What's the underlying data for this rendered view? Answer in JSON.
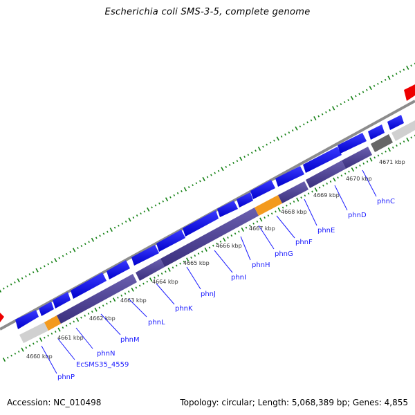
{
  "title": "Escherichia coli SMS-3-5, complete genome",
  "footer": {
    "accession": "Accession: NC_010498",
    "summary": "Topology: circular; Length: 5,068,389 bp; Genes: 4,855"
  },
  "kbp_labels": [
    "4660 kbp",
    "4661 kbp",
    "4662 kbp",
    "4663 kbp",
    "4664 kbp",
    "4665 kbp",
    "4666 kbp",
    "4667 kbp",
    "4668 kbp",
    "4669 kbp",
    "4670 kbp",
    "4671 kbp"
  ],
  "gene_labels": [
    "phnP",
    "EcSMS35_4559",
    "phnN",
    "phnM",
    "phnL",
    "phnK",
    "phnJ",
    "phnI",
    "phnH",
    "phnG",
    "phnF",
    "phnE",
    "phnD",
    "phnC"
  ],
  "colors": {
    "forward_cds": "#0a0aee",
    "reverse_cds": "#4a3f8e",
    "highlight": "#f39a1e",
    "gray_feature": "#666666",
    "light_feature": "#d0d0d0",
    "red_marker": "#ee0000",
    "backbone": "#8c8c8c",
    "tick": "#138013"
  }
}
